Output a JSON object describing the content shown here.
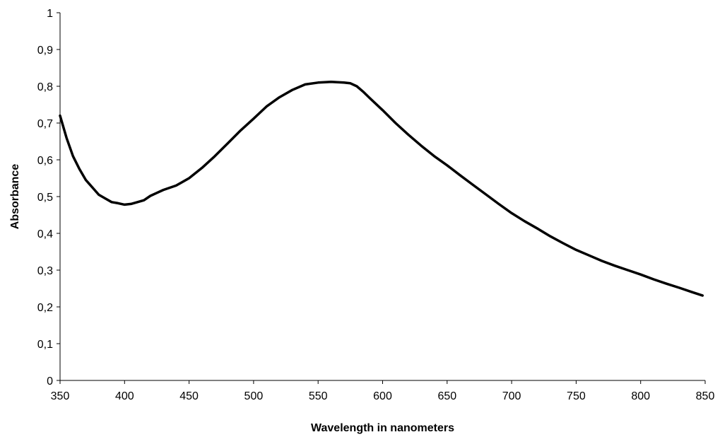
{
  "chart_data": {
    "type": "line",
    "title": "",
    "xlabel": "Wavelength in nanometers",
    "ylabel": "Absorbance",
    "xlim": [
      350,
      850
    ],
    "ylim": [
      0,
      1
    ],
    "x_ticks": [
      350,
      400,
      450,
      500,
      550,
      600,
      650,
      700,
      750,
      800,
      850
    ],
    "x_tick_labels": [
      "350",
      "400",
      "450",
      "500",
      "550",
      "600",
      "650",
      "700",
      "750",
      "800",
      "850"
    ],
    "y_ticks": [
      0,
      0.1,
      0.2,
      0.3,
      0.4,
      0.5,
      0.6,
      0.7,
      0.8,
      0.9,
      1
    ],
    "y_tick_labels": [
      "0",
      "0,1",
      "0,2",
      "0,3",
      "0,4",
      "0,5",
      "0,6",
      "0,7",
      "0,8",
      "0,9",
      "1"
    ],
    "grid": false,
    "legend": "none",
    "series": [
      {
        "color": "#000000",
        "x": [
          350,
          355,
          360,
          365,
          370,
          375,
          380,
          385,
          390,
          395,
          400,
          405,
          410,
          415,
          420,
          425,
          430,
          440,
          450,
          460,
          470,
          480,
          490,
          500,
          510,
          520,
          530,
          540,
          550,
          560,
          570,
          575,
          580,
          585,
          590,
          600,
          610,
          620,
          630,
          640,
          650,
          660,
          670,
          680,
          690,
          700,
          710,
          720,
          730,
          740,
          750,
          760,
          770,
          780,
          790,
          800,
          810,
          820,
          830,
          840,
          848
        ],
        "y": [
          0.72,
          0.66,
          0.61,
          0.575,
          0.545,
          0.525,
          0.505,
          0.495,
          0.485,
          0.482,
          0.478,
          0.48,
          0.485,
          0.49,
          0.502,
          0.51,
          0.518,
          0.53,
          0.55,
          0.578,
          0.61,
          0.645,
          0.68,
          0.712,
          0.745,
          0.77,
          0.79,
          0.805,
          0.81,
          0.812,
          0.81,
          0.808,
          0.8,
          0.785,
          0.768,
          0.735,
          0.7,
          0.668,
          0.638,
          0.61,
          0.585,
          0.558,
          0.532,
          0.506,
          0.48,
          0.455,
          0.433,
          0.413,
          0.392,
          0.373,
          0.355,
          0.34,
          0.325,
          0.312,
          0.3,
          0.288,
          0.275,
          0.263,
          0.252,
          0.24,
          0.231
        ]
      }
    ]
  }
}
